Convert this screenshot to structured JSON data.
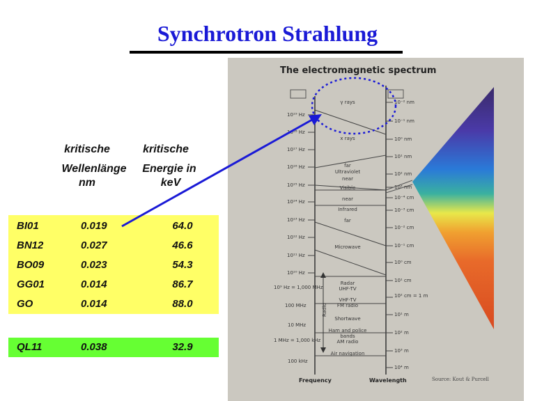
{
  "title": "Synchrotron Strahlung",
  "headers": {
    "col2_line1": "kritische",
    "col2_line2": "Wellenlänge",
    "col2_line3": "nm",
    "col3_line1": "kritische",
    "col3_line2": "Energie in",
    "col3_line3": "keV"
  },
  "rows": [
    {
      "name": "BI01",
      "wavelength": "0.019",
      "energy": "64.0"
    },
    {
      "name": "BN12",
      "wavelength": "0.027",
      "energy": "46.6"
    },
    {
      "name": "BO09",
      "wavelength": "0.023",
      "energy": "54.3"
    },
    {
      "name": "GG01",
      "wavelength": "0.014",
      "energy": "86.7"
    },
    {
      "name": "GO",
      "wavelength": "0.014",
      "energy": "88.0"
    }
  ],
  "highlight_row": {
    "name": "QL11",
    "wavelength": "0.038",
    "energy": "32.9"
  },
  "spectrum": {
    "title": "The electromagnetic spectrum",
    "frequencies": [
      "10¹⁹ Hz",
      "10¹⁸ Hz",
      "10¹⁷ Hz",
      "10¹⁶ Hz",
      "10¹⁵ Hz",
      "10¹⁴ Hz",
      "10¹³ Hz",
      "10¹² Hz",
      "10¹¹ Hz",
      "10¹⁰ Hz",
      "10⁹ Hz = 1,000 MHz",
      "100 MHz",
      "10 MHz",
      "1 MHz = 1,000 kHz",
      "100 kHz"
    ],
    "wavelengths": [
      "10⁻² nm",
      "10⁻¹ nm",
      "10⁰ nm",
      "10¹ nm",
      "10² nm",
      "10³ nm",
      "10⁻⁴ cm",
      "10⁻³ cm",
      "10⁻² cm",
      "10⁻¹ cm",
      "10⁰ cm",
      "10¹ cm",
      "10² cm = 1 m",
      "10¹ m",
      "10² m",
      "10³ m",
      "10⁴ m"
    ],
    "bands": [
      "γ rays",
      "x rays",
      "far",
      "Ultraviolet",
      "near",
      "Visible",
      "near",
      "Infrared",
      "far",
      "Microwave",
      "Radar",
      "UHF-TV",
      "VHF-TV",
      "FM radio",
      "Shortwave",
      "Ham and police",
      "bands",
      "AM radio",
      "Air navigation"
    ],
    "axis_left": "Frequency",
    "axis_right": "Wavelength",
    "radio_label": "Radio",
    "source": "Source: Kout & Purcell"
  },
  "colors": {
    "title": "#1a1ad6",
    "table_yellow": "#ffff66",
    "table_green": "#66ff33",
    "arrow": "#1a1ad6"
  }
}
